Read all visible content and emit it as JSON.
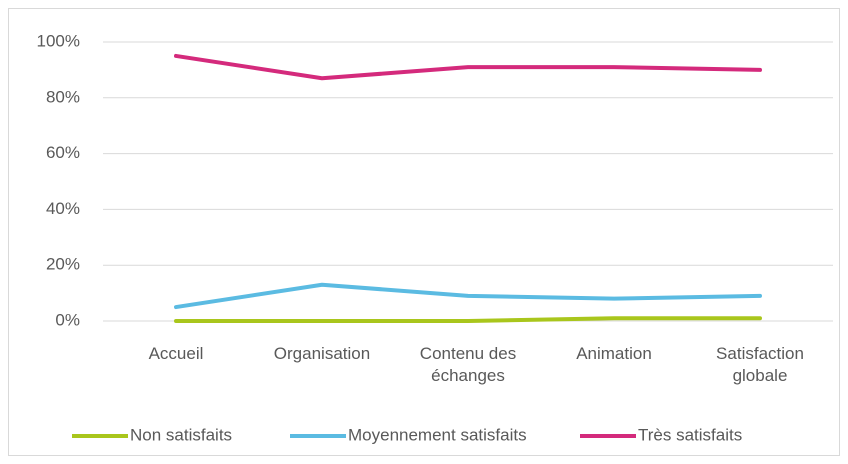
{
  "chart_data": {
    "type": "line",
    "categories": [
      "Accueil",
      "Organisation",
      "Contenu des échanges",
      "Animation",
      "Satisfaction globale"
    ],
    "series": [
      {
        "name": "Non satisfaits",
        "color": "#a9c61c",
        "values": [
          0,
          0,
          0,
          1,
          1
        ]
      },
      {
        "name": "Moyennement satisfaits",
        "color": "#5bbbe2",
        "values": [
          5,
          13,
          9,
          8,
          9
        ]
      },
      {
        "name": "Très satisfaits",
        "color": "#d42a7c",
        "values": [
          95,
          87,
          91,
          91,
          90
        ]
      }
    ],
    "ylim": [
      0,
      100
    ],
    "yticks": [
      {
        "value": 0,
        "label": "0%"
      },
      {
        "value": 20,
        "label": "20%"
      },
      {
        "value": 40,
        "label": "40%"
      },
      {
        "value": 60,
        "label": "60%"
      },
      {
        "value": 80,
        "label": "80%"
      },
      {
        "value": 100,
        "label": "100%"
      }
    ],
    "grid": true,
    "legend": "bottom"
  }
}
